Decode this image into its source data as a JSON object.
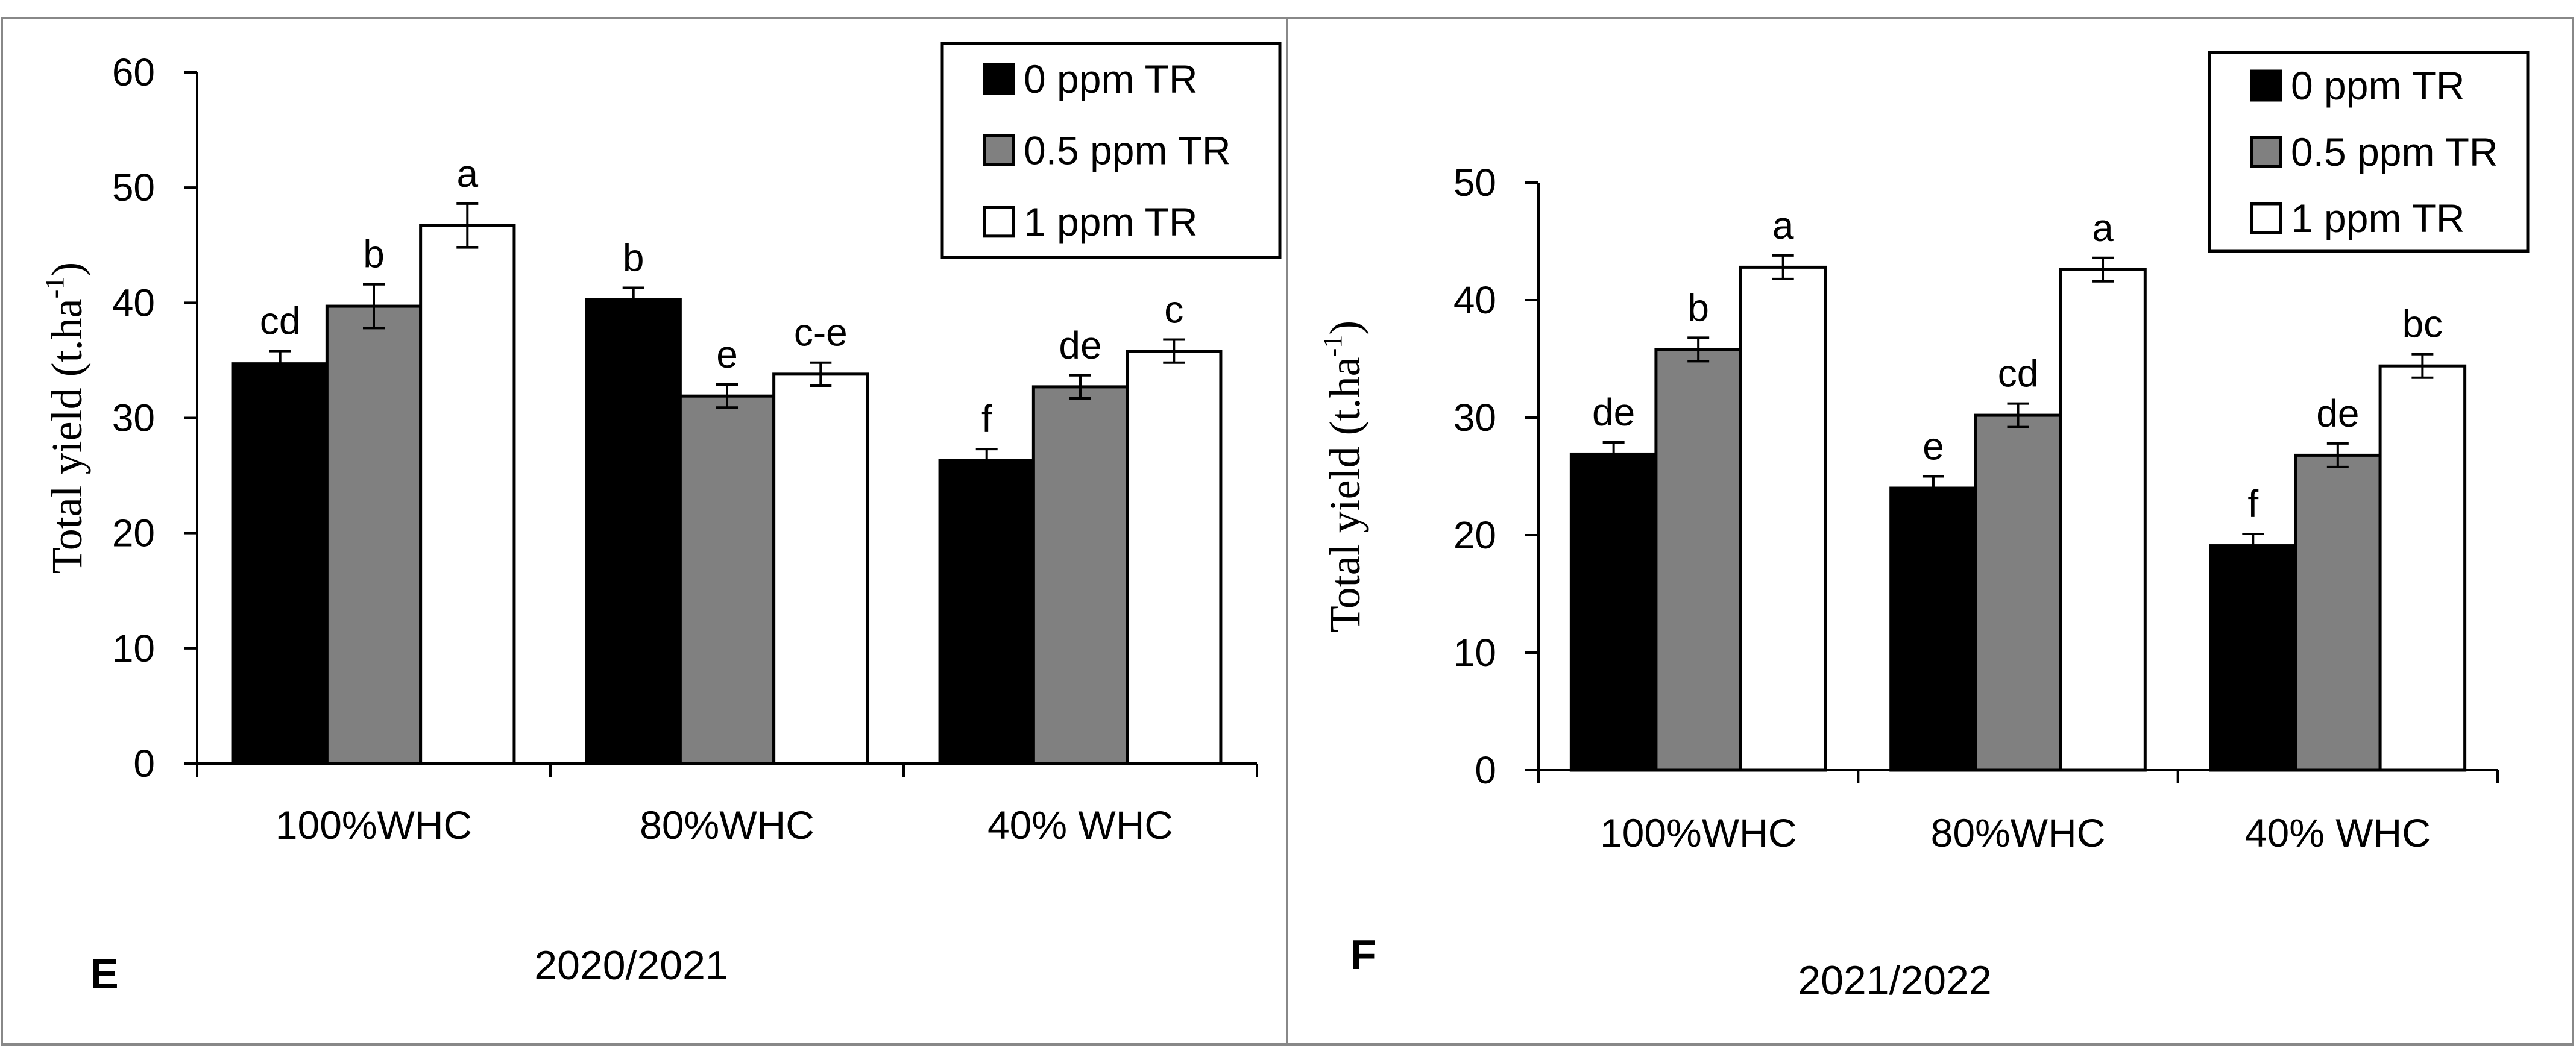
{
  "chart_data": [
    {
      "type": "bar",
      "panel_label": "E",
      "season": "2020/2021",
      "ylabel": "Total yield (t.ha",
      "ylabel_sup": "-1",
      "ylabel_close": ")",
      "ylim": [
        0,
        60
      ],
      "yticks": [
        0,
        10,
        20,
        30,
        40,
        50,
        60
      ],
      "categories": [
        "100%WHC",
        "80%WHC",
        "40% WHC"
      ],
      "legend_position": "top-right",
      "series": [
        {
          "name": "0 ppm TR",
          "color": "#000000",
          "values": [
            34.7,
            40.3,
            26.3
          ],
          "errors": [
            1.1,
            1.0,
            1.0
          ],
          "letters": [
            "cd",
            "b",
            "f"
          ]
        },
        {
          "name": "0.5 ppm TR",
          "color": "#808080",
          "values": [
            39.7,
            31.9,
            32.7
          ],
          "errors": [
            1.9,
            1.0,
            1.0
          ],
          "letters": [
            "b",
            "e",
            "de"
          ]
        },
        {
          "name": "1 ppm TR",
          "color": "#ffffff",
          "values": [
            46.7,
            33.8,
            35.8
          ],
          "errors": [
            1.9,
            1.0,
            1.0
          ],
          "letters": [
            "a",
            "c-e",
            "c"
          ]
        }
      ]
    },
    {
      "type": "bar",
      "panel_label": "F",
      "season": "2021/2022",
      "ylabel": "Total yield (t.ha",
      "ylabel_sup": "-1",
      "ylabel_close": ")",
      "ylim": [
        0,
        50
      ],
      "yticks": [
        0,
        10,
        20,
        30,
        40,
        50
      ],
      "categories": [
        "100%WHC",
        "80%WHC",
        "40% WHC"
      ],
      "legend_position": "top-right",
      "series": [
        {
          "name": "0 ppm TR",
          "color": "#000000",
          "values": [
            26.9,
            24.0,
            19.1
          ],
          "errors": [
            1.0,
            1.0,
            1.0
          ],
          "letters": [
            "de",
            "e",
            "f"
          ]
        },
        {
          "name": "0.5 ppm TR",
          "color": "#808080",
          "values": [
            35.8,
            30.2,
            26.8
          ],
          "errors": [
            1.0,
            1.0,
            1.0
          ],
          "letters": [
            "b",
            "cd",
            "de"
          ]
        },
        {
          "name": "1 ppm TR",
          "color": "#ffffff",
          "values": [
            42.8,
            42.6,
            34.4
          ],
          "errors": [
            1.0,
            1.0,
            1.0
          ],
          "letters": [
            "a",
            "a",
            "bc"
          ]
        }
      ]
    }
  ]
}
